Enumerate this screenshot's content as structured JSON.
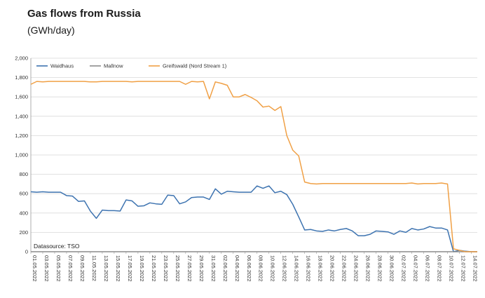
{
  "title": "Gas flows from Russia",
  "subtitle": "(GWh/day)",
  "source": "Datasource: TSO",
  "chart_data": {
    "type": "line",
    "ylim": [
      0,
      2000
    ],
    "yticks": [
      "0",
      "200",
      "400",
      "600",
      "800",
      "1,000",
      "1,200",
      "1,400",
      "1,600",
      "1,800",
      "2,000"
    ],
    "xtick_labels": [
      "01.05.2022",
      "03.05.2022",
      "05.05.2022",
      "07.05.2022",
      "09.05.2022",
      "11.05.2022",
      "13.05.2022",
      "15.05.2022",
      "17.05.2022",
      "19.05.2022",
      "21.05.2022",
      "23.05.2022",
      "25.05.2022",
      "27.05.2022",
      "29.05.2022",
      "31.05.2022",
      "02.06.2022",
      "04.06.2022",
      "06.06.2022",
      "08.06.2022",
      "10.06.2022",
      "12.06.2022",
      "14.06.2022",
      "16.06.2022",
      "18.06.2022",
      "20.06.2022",
      "22.06.2022",
      "24.06.2022",
      "26.06.2022",
      "28.06.2022",
      "30.06.2022",
      "02.07.2022",
      "04.07.2022",
      "06.07.2022",
      "08.07.2022",
      "10.07.2022",
      "12.07.2022",
      "14.07.2022"
    ],
    "legend_position": "top-left",
    "grid": "horizontal",
    "series": [
      {
        "name": "Waidhaus",
        "color": "#3d73b0",
        "values": [
          620,
          615,
          620,
          615,
          615,
          615,
          580,
          575,
          520,
          525,
          420,
          345,
          430,
          425,
          425,
          420,
          535,
          525,
          470,
          475,
          505,
          495,
          490,
          585,
          580,
          495,
          515,
          560,
          565,
          565,
          540,
          650,
          595,
          625,
          620,
          615,
          615,
          615,
          680,
          655,
          680,
          610,
          625,
          590,
          490,
          360,
          225,
          230,
          215,
          210,
          225,
          215,
          230,
          240,
          215,
          165,
          165,
          180,
          215,
          210,
          205,
          180,
          215,
          200,
          240,
          225,
          235,
          260,
          245,
          245,
          225,
          0,
          15,
          5,
          0,
          0
        ]
      },
      {
        "name": "Mallnow",
        "color": "#8c8c8c",
        "values": [
          0,
          0,
          0,
          0,
          0,
          0,
          0,
          0,
          0,
          0,
          0,
          0,
          0,
          0,
          0,
          0,
          0,
          0,
          0,
          0,
          0,
          0,
          0,
          0,
          0,
          0,
          0,
          0,
          0,
          0,
          0,
          0,
          0,
          0,
          0,
          0,
          0,
          0,
          0,
          0,
          0,
          0,
          0,
          0,
          0,
          0,
          0,
          0,
          0,
          0,
          0,
          0,
          0,
          0,
          0,
          0,
          0,
          0,
          0,
          0,
          0,
          0,
          0,
          0,
          0,
          0,
          0,
          0,
          0,
          0,
          0,
          0,
          0,
          0,
          0,
          0
        ]
      },
      {
        "name": "Greifswald (Nord Stream 1)",
        "color": "#f0a045",
        "values": [
          1730,
          1760,
          1755,
          1760,
          1760,
          1760,
          1760,
          1760,
          1760,
          1760,
          1755,
          1755,
          1760,
          1760,
          1760,
          1760,
          1760,
          1755,
          1760,
          1760,
          1760,
          1760,
          1760,
          1760,
          1760,
          1760,
          1730,
          1760,
          1755,
          1760,
          1580,
          1755,
          1740,
          1720,
          1600,
          1600,
          1625,
          1595,
          1560,
          1495,
          1505,
          1460,
          1500,
          1200,
          1050,
          990,
          720,
          705,
          700,
          705,
          705,
          705,
          705,
          705,
          705,
          705,
          705,
          705,
          705,
          705,
          705,
          705,
          705,
          705,
          710,
          700,
          705,
          705,
          705,
          710,
          700,
          30,
          15,
          0,
          0,
          0
        ]
      }
    ]
  }
}
